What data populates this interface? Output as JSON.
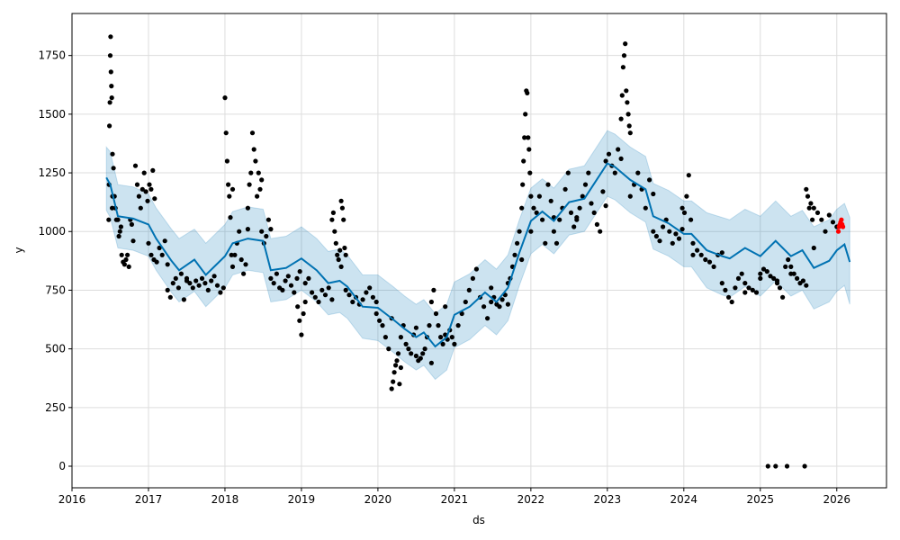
{
  "chart_data": {
    "type": "line",
    "title": "",
    "xlabel": "ds",
    "ylabel": "y",
    "xlim": [
      2016.0,
      2026.65
    ],
    "ylim": [
      -92,
      1929
    ],
    "grid": true,
    "x_ticks": [
      2016,
      2017,
      2018,
      2019,
      2020,
      2021,
      2022,
      2023,
      2024,
      2025,
      2026
    ],
    "x_tick_labels": [
      "2016",
      "2017",
      "2018",
      "2019",
      "2020",
      "2021",
      "2022",
      "2023",
      "2024",
      "2025",
      "2026"
    ],
    "y_ticks": [
      0,
      250,
      500,
      750,
      1000,
      1250,
      1500,
      1750
    ],
    "y_tick_labels": [
      "0",
      "250",
      "500",
      "750",
      "1000",
      "1250",
      "1500",
      "1750"
    ],
    "colors": {
      "forecast": "#0072B2",
      "band": "#0072B2",
      "observed": "#000000",
      "future": "#ff0000",
      "grid": "#dddddd"
    },
    "forecast": {
      "x": [
        2016.45,
        2016.5,
        2016.6,
        2016.8,
        2017.0,
        2017.1,
        2017.3,
        2017.4,
        2017.6,
        2017.75,
        2018.0,
        2018.1,
        2018.3,
        2018.5,
        2018.6,
        2018.8,
        2019.0,
        2019.2,
        2019.35,
        2019.5,
        2019.6,
        2019.8,
        2020.0,
        2020.2,
        2020.35,
        2020.5,
        2020.6,
        2020.75,
        2020.9,
        2021.0,
        2021.2,
        2021.4,
        2021.55,
        2021.7,
        2021.85,
        2022.0,
        2022.15,
        2022.3,
        2022.5,
        2022.7,
        2022.9,
        2023.0,
        2023.1,
        2023.3,
        2023.5,
        2023.6,
        2023.8,
        2024.0,
        2024.1,
        2024.3,
        2024.5,
        2024.6,
        2024.8,
        2025.0,
        2025.2,
        2025.4,
        2025.55,
        2025.7,
        2025.9,
        2026.0,
        2026.1,
        2026.17
      ],
      "yhat": [
        1230,
        1200,
        1065,
        1055,
        1030,
        970,
        875,
        835,
        880,
        815,
        895,
        950,
        970,
        960,
        835,
        845,
        885,
        835,
        780,
        790,
        765,
        680,
        675,
        625,
        585,
        550,
        570,
        510,
        550,
        645,
        680,
        740,
        700,
        760,
        910,
        1045,
        1085,
        1045,
        1125,
        1140,
        1240,
        1290,
        1275,
        1220,
        1180,
        1065,
        1035,
        990,
        990,
        920,
        895,
        885,
        930,
        895,
        960,
        895,
        920,
        845,
        875,
        920,
        945,
        870
      ],
      "upper": [
        1360,
        1340,
        1200,
        1190,
        1160,
        1100,
        1010,
        970,
        1010,
        950,
        1030,
        1085,
        1105,
        1095,
        970,
        980,
        1020,
        970,
        915,
        925,
        900,
        815,
        815,
        765,
        725,
        690,
        710,
        650,
        690,
        785,
        820,
        880,
        840,
        900,
        1050,
        1185,
        1225,
        1185,
        1265,
        1280,
        1380,
        1430,
        1415,
        1360,
        1320,
        1205,
        1175,
        1130,
        1130,
        1080,
        1060,
        1050,
        1095,
        1065,
        1130,
        1065,
        1090,
        1020,
        1050,
        1095,
        1120,
        1060
      ],
      "lower": [
        1090,
        1060,
        930,
        920,
        895,
        835,
        740,
        700,
        745,
        680,
        760,
        815,
        835,
        825,
        700,
        710,
        750,
        700,
        645,
        655,
        630,
        545,
        535,
        485,
        445,
        410,
        430,
        370,
        410,
        505,
        540,
        600,
        560,
        620,
        770,
        905,
        945,
        905,
        985,
        1000,
        1100,
        1150,
        1135,
        1080,
        1040,
        925,
        895,
        850,
        850,
        760,
        730,
        720,
        765,
        725,
        790,
        725,
        750,
        670,
        700,
        745,
        770,
        690
      ]
    },
    "observed_clusters": [
      [
        2016.48,
        2016.53,
        [
          1050,
          1200,
          1450,
          1550,
          1750,
          1830,
          1680,
          1620,
          1570,
          1100,
          1150
        ]
      ],
      [
        2016.53,
        2016.58,
        [
          1330,
          1270,
          1150,
          1100,
          1050
        ]
      ],
      [
        2016.6,
        2016.64,
        [
          1050,
          980,
          1000,
          1020
        ]
      ],
      [
        2016.65,
        2016.8,
        [
          900,
          870,
          860,
          880,
          900,
          850,
          1050,
          1030,
          960
        ]
      ],
      [
        2016.83,
        2017.08,
        [
          1280,
          1200,
          1150,
          1100,
          1180,
          1250,
          1170,
          1130,
          1200,
          1180,
          1260,
          1140
        ]
      ],
      [
        2017.0,
        2017.25,
        [
          950,
          900,
          880,
          870,
          930,
          900,
          960,
          860
        ]
      ],
      [
        2017.25,
        2017.5,
        [
          750,
          720,
          780,
          800,
          760,
          820,
          710,
          790
        ]
      ],
      [
        2017.5,
        2017.98,
        [
          800,
          780,
          760,
          790,
          770,
          800,
          780,
          750,
          790,
          810,
          770,
          740,
          760
        ]
      ],
      [
        2018.0,
        2018.1,
        [
          1570,
          1420,
          1300,
          1200,
          1150,
          1060,
          900,
          1180
        ]
      ],
      [
        2018.1,
        2018.3,
        [
          850,
          900,
          950,
          1000,
          880,
          820,
          860,
          1010
        ]
      ],
      [
        2018.3,
        2018.48,
        [
          1100,
          1200,
          1250,
          1420,
          1350,
          1300,
          1150,
          1250,
          1180,
          1220
        ]
      ],
      [
        2018.48,
        2018.6,
        [
          1000,
          950,
          980,
          1050,
          1010
        ]
      ],
      [
        2018.6,
        2018.98,
        [
          800,
          780,
          820,
          760,
          750,
          790,
          810,
          770,
          740,
          800,
          830
        ]
      ],
      [
        2018.95,
        2019.05,
        [
          680,
          620,
          560,
          650,
          700
        ]
      ],
      [
        2019.05,
        2019.4,
        [
          780,
          800,
          740,
          720,
          700,
          750,
          730,
          760,
          710
        ]
      ],
      [
        2019.4,
        2019.52,
        [
          1050,
          1080,
          1000,
          950,
          900,
          880,
          920,
          850
        ]
      ],
      [
        2019.52,
        2019.58,
        [
          1130,
          1100,
          1050,
          930,
          900
        ]
      ],
      [
        2019.58,
        2019.98,
        [
          750,
          730,
          700,
          720,
          690,
          710,
          740,
          760,
          720,
          700
        ]
      ],
      [
        2019.98,
        2020.18,
        [
          650,
          620,
          600,
          550,
          500,
          630
        ]
      ],
      [
        2020.18,
        2020.3,
        [
          330,
          360,
          400,
          430,
          450,
          480,
          350,
          420
        ]
      ],
      [
        2020.3,
        2020.5,
        [
          550,
          600,
          520,
          500,
          480,
          560,
          590
        ]
      ],
      [
        2020.5,
        2020.7,
        [
          470,
          450,
          460,
          480,
          500,
          550,
          600,
          440
        ]
      ],
      [
        2020.7,
        2020.88,
        [
          700,
          750,
          650,
          600,
          550,
          520,
          680
        ]
      ],
      [
        2020.88,
        2021.0,
        [
          560,
          540,
          580,
          550,
          520
        ]
      ],
      [
        2021.05,
        2021.48,
        [
          600,
          650,
          700,
          750,
          800,
          840,
          720,
          680,
          630,
          760
        ]
      ],
      [
        2021.48,
        2021.7,
        [
          700,
          720,
          690,
          680,
          710,
          730,
          690
        ]
      ],
      [
        2021.7,
        2021.88,
        [
          780,
          800,
          850,
          900,
          950,
          1000,
          880
        ]
      ],
      [
        2021.88,
        2022.0,
        [
          1100,
          1200,
          1300,
          1400,
          1500,
          1600,
          1590,
          1400,
          1350,
          1250,
          1150
        ]
      ],
      [
        2022.0,
        2022.3,
        [
          1000,
          1100,
          1080,
          1150,
          1050,
          950,
          1200,
          1130,
          1060
        ]
      ],
      [
        2022.3,
        2022.6,
        [
          1000,
          950,
          1050,
          1100,
          1180,
          1250,
          1080,
          1020,
          1060
        ]
      ],
      [
        2022.6,
        2022.98,
        [
          1050,
          1100,
          1150,
          1200,
          1250,
          1120,
          1080,
          1030,
          1000,
          1170,
          1110
        ]
      ],
      [
        2022.98,
        2023.18,
        [
          1300,
          1330,
          1280,
          1250,
          1350,
          1310
        ]
      ],
      [
        2023.18,
        2023.3,
        [
          1480,
          1580,
          1700,
          1750,
          1800,
          1600,
          1550,
          1500,
          1450,
          1420
        ]
      ],
      [
        2023.3,
        2023.6,
        [
          1150,
          1200,
          1250,
          1180,
          1100,
          1220,
          1160
        ]
      ],
      [
        2023.6,
        2023.98,
        [
          1000,
          980,
          960,
          1020,
          1050,
          1000,
          950,
          990,
          970,
          1010
        ]
      ],
      [
        2023.98,
        2024.12,
        [
          1100,
          1080,
          1150,
          1240,
          1050,
          900
        ]
      ],
      [
        2024.12,
        2024.5,
        [
          950,
          920,
          900,
          880,
          870,
          850,
          900,
          910
        ]
      ],
      [
        2024.5,
        2024.8,
        [
          780,
          750,
          720,
          700,
          760,
          800,
          820,
          740
        ]
      ],
      [
        2024.8,
        2025.0,
        [
          780,
          760,
          750,
          740,
          800
        ]
      ],
      [
        2025.0,
        2025.22,
        [
          820,
          840,
          830,
          810,
          800,
          790
        ]
      ],
      [
        2025.22,
        2025.4,
        [
          780,
          760,
          720,
          850,
          880,
          820
        ]
      ],
      [
        2025.4,
        2025.6,
        [
          850,
          820,
          800,
          780,
          790,
          770
        ]
      ],
      [
        2025.6,
        2025.7,
        [
          1180,
          1150,
          1100,
          1120,
          1050,
          930
        ]
      ],
      [
        2025.7,
        2026.0,
        [
          1100,
          1080,
          1050,
          1000,
          1070,
          1040,
          1020
        ]
      ],
      [
        2025.1,
        2025.1,
        [
          0
        ]
      ],
      [
        2025.2,
        2025.2,
        [
          0
        ]
      ],
      [
        2025.35,
        2025.35,
        [
          0
        ]
      ],
      [
        2025.58,
        2025.58,
        [
          0
        ]
      ]
    ],
    "future_points": {
      "x": [
        2026.02,
        2026.03,
        2026.04,
        2026.05,
        2026.06,
        2026.07,
        2026.08
      ],
      "y": [
        1000,
        1020,
        1030,
        1040,
        1050,
        1030,
        1020
      ]
    }
  }
}
